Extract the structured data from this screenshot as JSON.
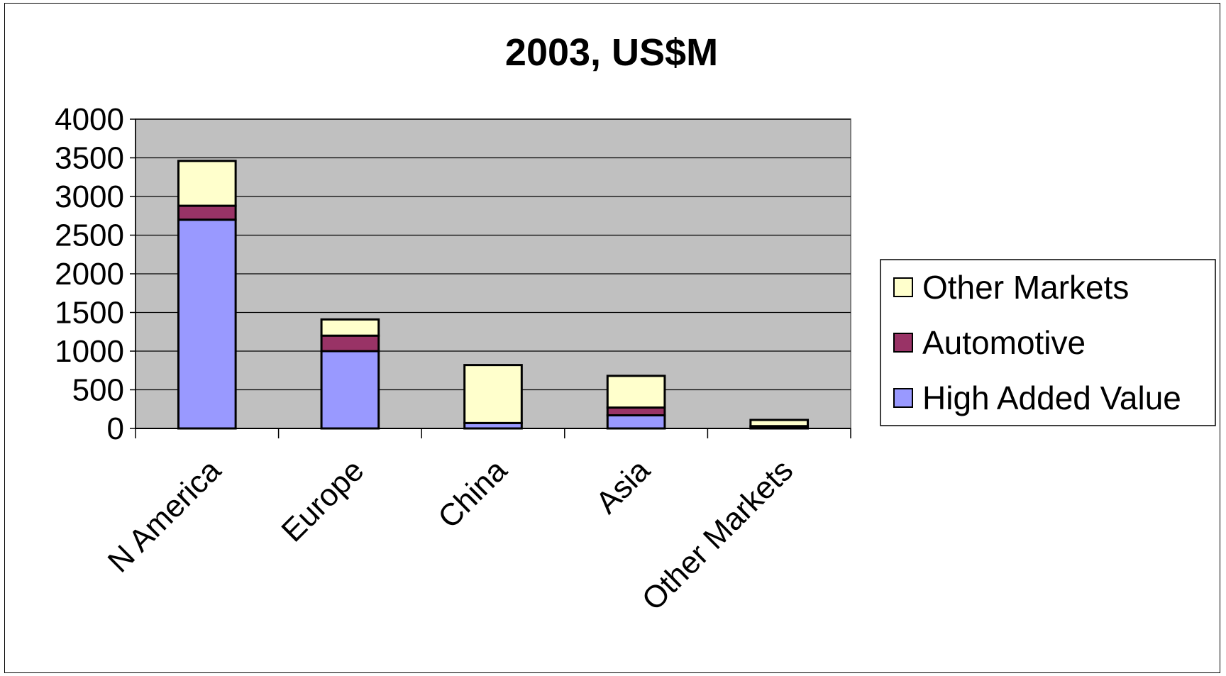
{
  "chart_data": {
    "type": "bar",
    "stacked": true,
    "title": "2003, US$M",
    "xlabel": "",
    "ylabel": "",
    "categories": [
      "N America",
      "Europe",
      "China",
      "Asia",
      "Other Markets"
    ],
    "ylim": [
      0,
      4000
    ],
    "yticks": [
      0,
      500,
      1000,
      1500,
      2000,
      2500,
      3000,
      3500,
      4000
    ],
    "grid": true,
    "plot_background": "#C0C0C0",
    "legend_position": "right",
    "series": [
      {
        "name": "High Added Value",
        "color": "#9999FF",
        "values": [
          2700,
          1000,
          70,
          170,
          20
        ]
      },
      {
        "name": "Automotive",
        "color": "#993366",
        "values": [
          180,
          200,
          0,
          100,
          10
        ]
      },
      {
        "name": "Other Markets",
        "color": "#FFFFCC",
        "values": [
          580,
          210,
          750,
          410,
          80
        ]
      }
    ],
    "legend_order": [
      "Other Markets",
      "Automotive",
      "High Added Value"
    ]
  }
}
